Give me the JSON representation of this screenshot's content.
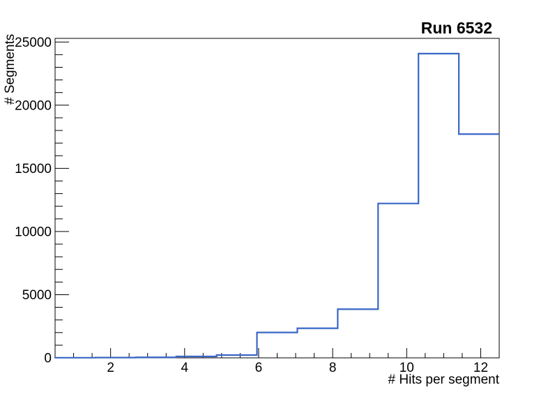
{
  "chart_data": {
    "type": "bar",
    "subtype": "step-histogram",
    "title": "Run 6532",
    "xlabel": "# Hits per segment",
    "ylabel": "# Segments",
    "bin_edges": [
      0.5,
      1.5909,
      2.6818,
      3.7727,
      4.8636,
      5.9545,
      7.0455,
      8.1364,
      9.2273,
      10.3182,
      11.4091,
      12.5
    ],
    "values": [
      10,
      20,
      40,
      110,
      220,
      2010,
      2340,
      3850,
      12220,
      24080,
      17710
    ],
    "xlim": [
      0.5,
      12.5
    ],
    "ylim": [
      0,
      25290
    ],
    "x_axis": {
      "major_ticks": [
        2,
        4,
        6,
        8,
        10,
        12
      ],
      "minor_step": 0.5
    },
    "y_axis": {
      "major_ticks": [
        0,
        5000,
        10000,
        15000,
        20000,
        25000
      ],
      "minor_step": 1000
    },
    "grid": false,
    "legend_position": "none",
    "colors": {
      "line": "#3866c6",
      "axis": "#000000",
      "text": "#000000",
      "background": "#ffffff"
    },
    "line_width": 2.2
  }
}
